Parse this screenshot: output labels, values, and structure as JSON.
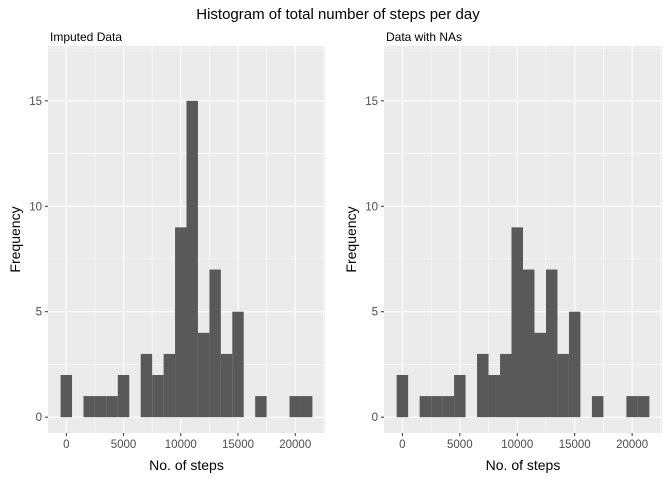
{
  "title": "Histogram of total number of steps per day",
  "chart_data": [
    {
      "type": "bar",
      "subtitle": "Imputed Data",
      "xlabel": "No. of steps",
      "ylabel": "Frequency",
      "bin_width": 1000,
      "bin_starts": [
        -500,
        500,
        1500,
        2500,
        3500,
        4500,
        5500,
        6500,
        7500,
        8500,
        9500,
        10500,
        11500,
        12500,
        13500,
        14500,
        15500,
        16500,
        17500,
        18500,
        19500,
        20500
      ],
      "values": [
        2,
        0,
        1,
        1,
        1,
        2,
        0,
        3,
        2,
        3,
        9,
        15,
        4,
        7,
        3,
        5,
        0,
        1,
        0,
        0,
        1,
        1
      ],
      "xlim": [
        -1600,
        22600
      ],
      "ylim": [
        -0.75,
        17.6
      ],
      "x_ticks": [
        0,
        5000,
        10000,
        15000,
        20000
      ],
      "y_ticks": [
        0,
        5,
        10,
        15
      ],
      "grid": true
    },
    {
      "type": "bar",
      "subtitle": "Data with NAs",
      "xlabel": "No. of steps",
      "ylabel": "Frequency",
      "bin_width": 1000,
      "bin_starts": [
        -500,
        500,
        1500,
        2500,
        3500,
        4500,
        5500,
        6500,
        7500,
        8500,
        9500,
        10500,
        11500,
        12500,
        13500,
        14500,
        15500,
        16500,
        17500,
        18500,
        19500,
        20500
      ],
      "values": [
        2,
        0,
        1,
        1,
        1,
        2,
        0,
        3,
        2,
        3,
        9,
        7,
        4,
        7,
        3,
        5,
        0,
        1,
        0,
        0,
        1,
        1
      ],
      "xlim": [
        -1600,
        22600
      ],
      "ylim": [
        -0.75,
        17.6
      ],
      "x_ticks": [
        0,
        5000,
        10000,
        15000,
        20000
      ],
      "y_ticks": [
        0,
        5,
        10,
        15
      ],
      "grid": true
    }
  ]
}
